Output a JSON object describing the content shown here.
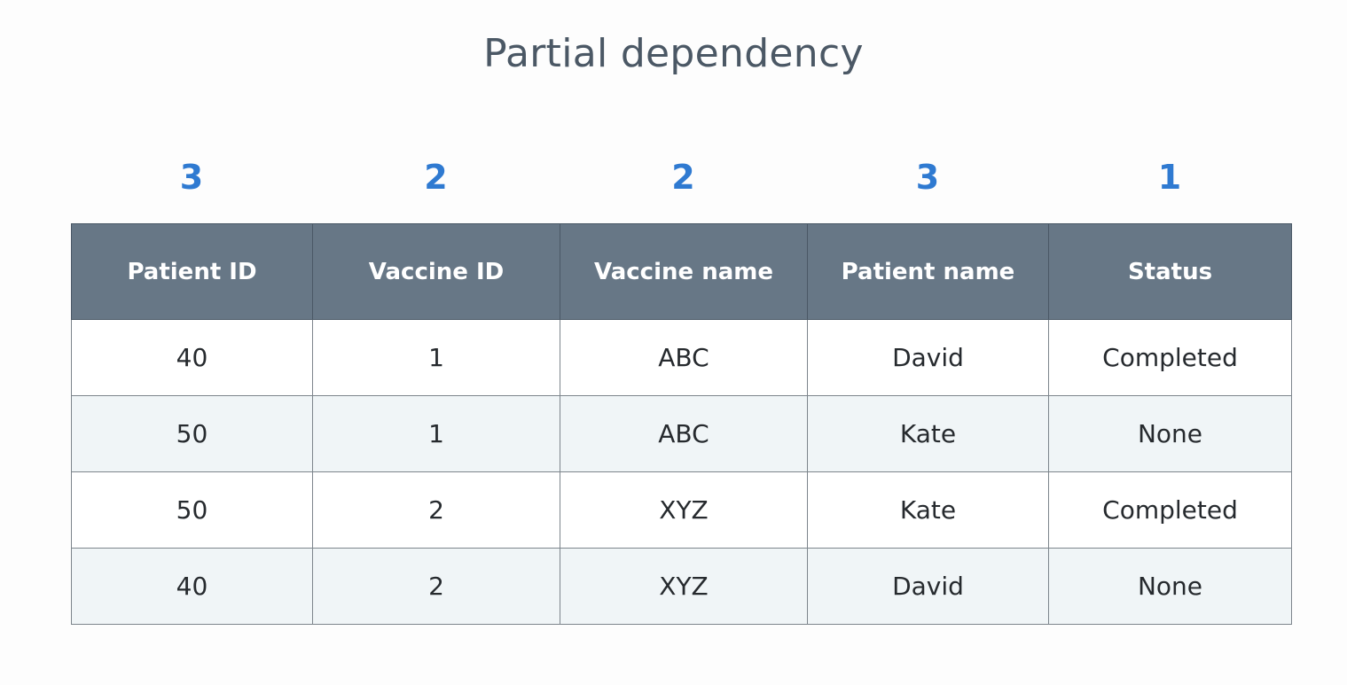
{
  "title": "Partial dependency",
  "column_counts": [
    "3",
    "2",
    "2",
    "3",
    "1"
  ],
  "table": {
    "headers": [
      "Patient ID",
      "Vaccine ID",
      "Vaccine name",
      "Patient name",
      "Status"
    ],
    "rows": [
      [
        "40",
        "1",
        "ABC",
        "David",
        "Completed"
      ],
      [
        "50",
        "1",
        "ABC",
        "Kate",
        "None"
      ],
      [
        "50",
        "2",
        "XYZ",
        "Kate",
        "Completed"
      ],
      [
        "40",
        "2",
        "XYZ",
        "David",
        "None"
      ]
    ]
  },
  "colors": {
    "header_background": "#677786",
    "count_text": "#2f7ad1",
    "title_text": "#4b5865",
    "alt_row_background": "#f0f5f7"
  }
}
